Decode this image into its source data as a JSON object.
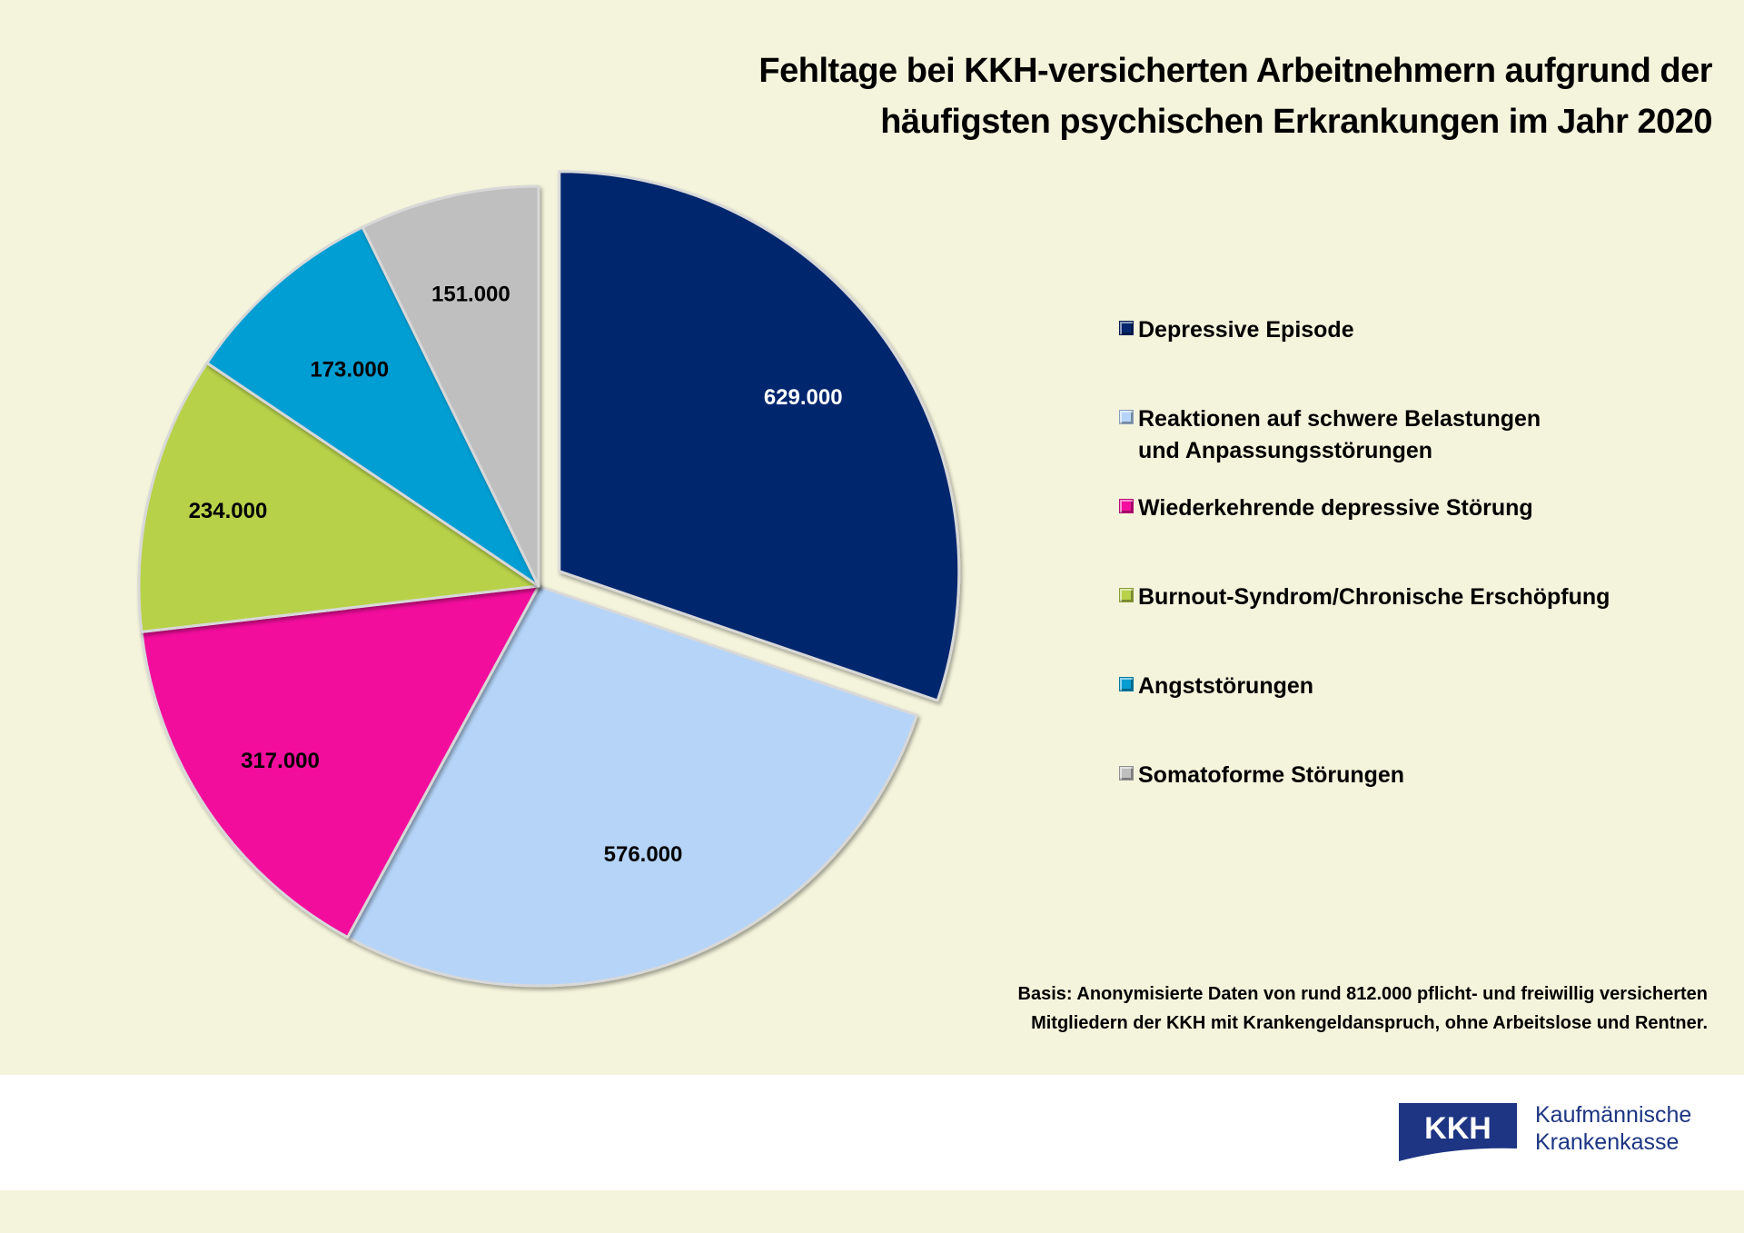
{
  "chart_data": {
    "type": "pie",
    "title": "Fehltage bei KKH-versicherten Arbeitnehmern aufgrund der häufigsten psychischen Erkrankungen im Jahr 2020",
    "title_lines": [
      "Fehltage bei KKH-versicherten Arbeitnehmern aufgrund der",
      "häufigsten psychischen Erkrankungen im Jahr 2020"
    ],
    "legend_position": "right",
    "start_angle_deg": 0,
    "direction": "clockwise",
    "exploded": [
      "Depressive Episode"
    ],
    "slices": [
      {
        "label": "Depressive Episode",
        "label_lines": [
          "Depressive Episode"
        ],
        "value": 629000,
        "value_label": "629.000",
        "color": "#06276e",
        "label_color": "#ffffff"
      },
      {
        "label": "Reaktionen auf schwere Belastungen und Anpassungsstörungen",
        "label_lines": [
          "Reaktionen auf schwere Belastungen",
          "und Anpassungsstörungen"
        ],
        "value": 576000,
        "value_label": "576.000",
        "color": "#b5d4f8",
        "label_color": "#000000"
      },
      {
        "label": "Wiederkehrende depressive Störung",
        "label_lines": [
          "Wiederkehrende depressive Störung"
        ],
        "value": 317000,
        "value_label": "317.000",
        "color": "#f30f9d",
        "label_color": "#000000"
      },
      {
        "label": "Burnout-Syndrom/Chronische Erschöpfung",
        "label_lines": [
          "Burnout-Syndrom/Chronische Erschöpfung"
        ],
        "value": 234000,
        "value_label": "234.000",
        "color": "#b7d14a",
        "label_color": "#000000"
      },
      {
        "label": "Angststörungen",
        "label_lines": [
          "Angststörungen"
        ],
        "value": 173000,
        "value_label": "173.000",
        "color": "#049ed3",
        "label_color": "#000000"
      },
      {
        "label": "Somatoforme Störungen",
        "label_lines": [
          "Somatoforme Störungen"
        ],
        "value": 151000,
        "value_label": "151.000",
        "color": "#bfbfbf",
        "label_color": "#000000"
      }
    ]
  },
  "footnote": {
    "lines": [
      "Basis: Anonymisierte Daten von rund 812.000 pflicht- und freiwillig versicherten",
      "Mitgliedern der KKH mit Krankengeldanspruch, ohne Arbeitslose und Rentner."
    ]
  },
  "logo": {
    "mark": "KKH",
    "name_lines": [
      "Kaufmännische",
      "Krankenkasse"
    ],
    "color": "#1d3583"
  },
  "colors": {
    "background": "#f4f4dc",
    "logo_band": "#ffffff"
  }
}
